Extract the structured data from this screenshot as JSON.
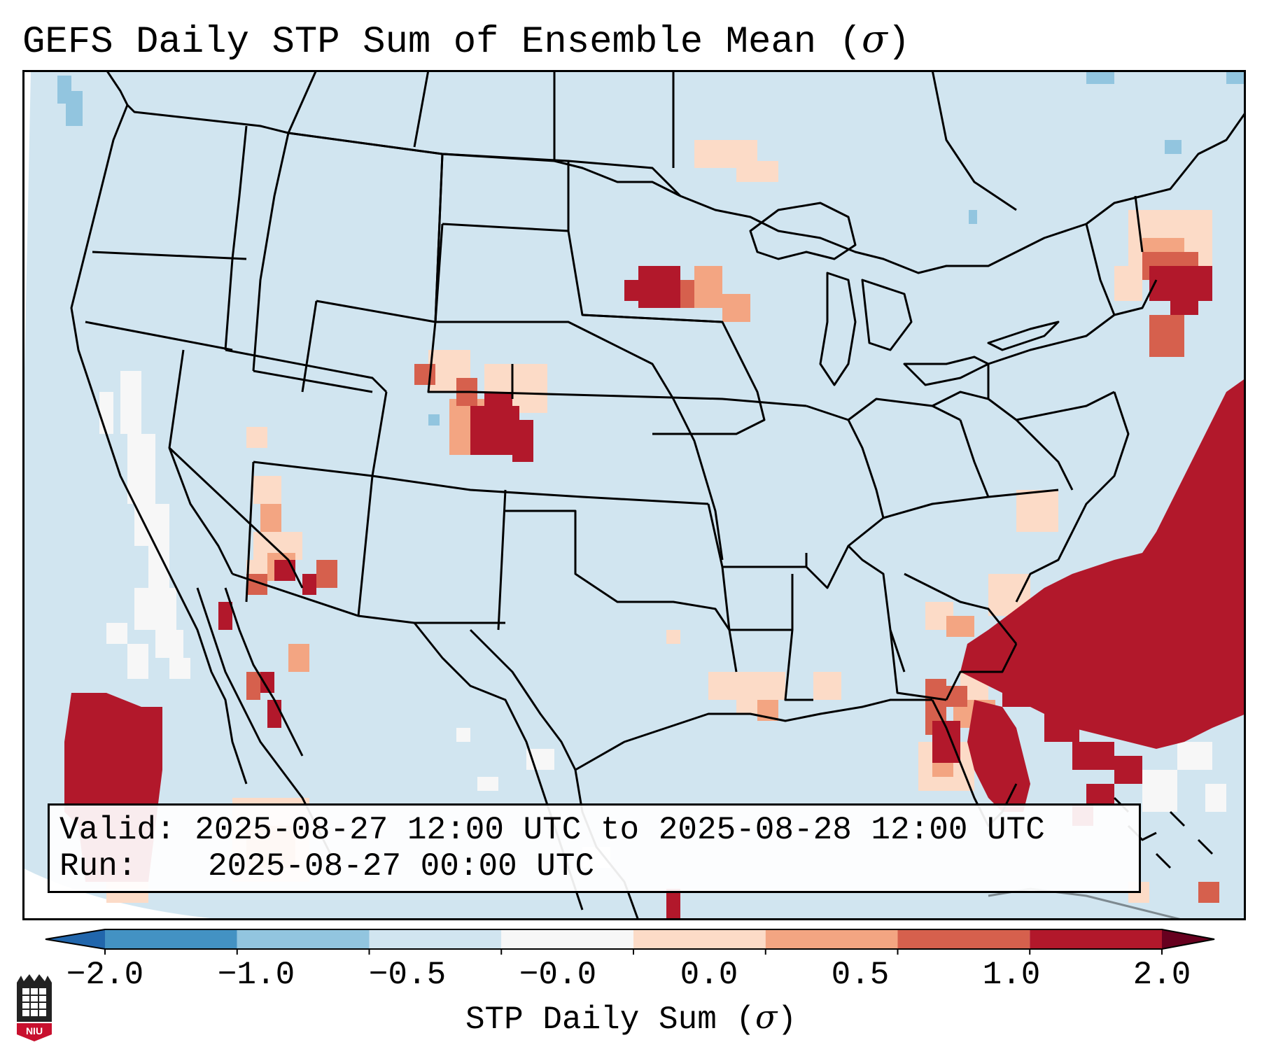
{
  "title": "GEFS Daily STP Sum of Ensemble Mean (",
  "title_sigma": "σ",
  "title_close": ")",
  "info": {
    "valid_label": "Valid:",
    "valid_value": "2025-08-27 12:00 UTC to 2025-08-28 12:00 UTC",
    "run_label": "Run:",
    "run_value": "2025-08-27 00:00 UTC"
  },
  "colorbar": {
    "ticks": [
      "−2.0",
      "−1.0",
      "−0.5",
      "−0.0",
      "0.0",
      "0.5",
      "1.0",
      "2.0"
    ],
    "colors": [
      "#4392c3",
      "#92c5df",
      "#d1e5f0",
      "#f7f7f7",
      "#fcdbc7",
      "#f3a582",
      "#d6604d",
      "#b2182b"
    ],
    "extend": "both",
    "label": "STP Daily Sum (",
    "label_sigma": "σ",
    "label_close": ")"
  },
  "map": {
    "background_color": "#d1e5f0",
    "border_color": "#000000"
  },
  "logo": {
    "icon": "niu-logo-icon",
    "text": "NIU"
  }
}
